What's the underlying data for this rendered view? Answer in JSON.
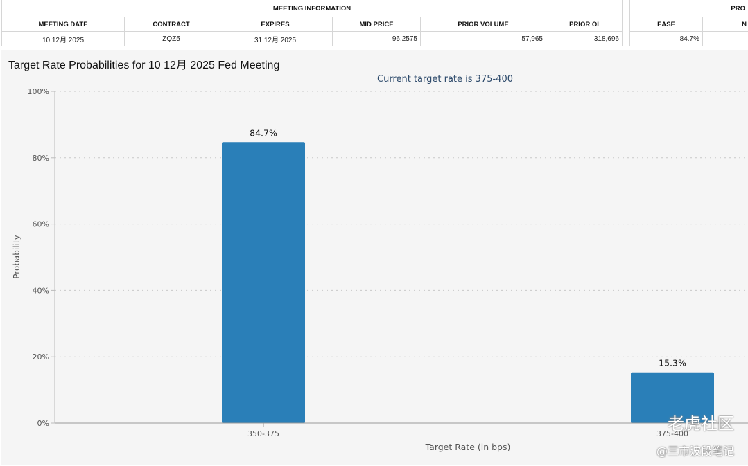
{
  "meeting_table": {
    "group_header": "MEETING INFORMATION",
    "columns": [
      "MEETING DATE",
      "CONTRACT",
      "EXPIRES",
      "MID PRICE",
      "PRIOR VOLUME",
      "PRIOR OI"
    ],
    "row": [
      "10 12月 2025",
      "ZQZ5",
      "31 12月 2025",
      "96.2575",
      "57,965",
      "318,696"
    ]
  },
  "prob_table": {
    "group_header": "PRO",
    "columns": [
      "EASE",
      "N"
    ],
    "row": [
      "84.7%",
      ""
    ]
  },
  "chart_title": "Target Rate Probabilities for 10 12月 2025 Fed Meeting",
  "chart_data": {
    "type": "bar",
    "subtitle": "Current target rate is 375-400",
    "categories": [
      "350-375",
      "375-400"
    ],
    "values": [
      84.7,
      15.3
    ],
    "value_labels": [
      "84.7%",
      "15.3%"
    ],
    "xlabel": "Target Rate (in bps)",
    "ylabel": "Probability",
    "ylim": [
      0,
      100
    ],
    "yticks": [
      0,
      20,
      40,
      60,
      80,
      100
    ],
    "ytick_labels": [
      "0%",
      "20%",
      "40%",
      "60%",
      "80%",
      "100%"
    ],
    "grid": true,
    "bar_color": "#2a7fb8"
  },
  "watermark": {
    "brand": "老虎社区",
    "author": "@三市波段笔记"
  }
}
